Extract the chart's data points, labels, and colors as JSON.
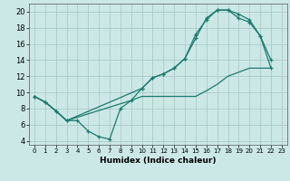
{
  "xlabel": "Humidex (Indice chaleur)",
  "bg_color": "#cce8e6",
  "grid_color": "#aaccca",
  "line_color": "#1a7a6e",
  "xlim": [
    -0.5,
    23.5
  ],
  "ylim": [
    3.5,
    21
  ],
  "xticks": [
    0,
    1,
    2,
    3,
    4,
    5,
    6,
    7,
    8,
    9,
    10,
    11,
    12,
    13,
    14,
    15,
    16,
    17,
    18,
    19,
    20,
    21,
    22,
    23
  ],
  "yticks": [
    4,
    6,
    8,
    10,
    12,
    14,
    16,
    18,
    20
  ],
  "line1_x": [
    0,
    1,
    2,
    3,
    4,
    5,
    6,
    7,
    8,
    9,
    10,
    11,
    12,
    13,
    14,
    15,
    16,
    17,
    18,
    19,
    20,
    21,
    22
  ],
  "line1_y": [
    9.5,
    8.8,
    7.7,
    6.5,
    6.5,
    5.2,
    4.5,
    4.2,
    8.0,
    9.0,
    10.5,
    11.8,
    12.3,
    13.0,
    14.2,
    17.2,
    19.0,
    20.2,
    20.2,
    19.2,
    18.7,
    17.0,
    14.0
  ],
  "line2_x": [
    0,
    1,
    2,
    3,
    10,
    11,
    12,
    13,
    14,
    15,
    16,
    17,
    18,
    19,
    20,
    21,
    22
  ],
  "line2_y": [
    9.5,
    8.8,
    7.7,
    6.5,
    10.5,
    11.8,
    12.3,
    13.0,
    14.2,
    16.7,
    19.2,
    20.2,
    20.2,
    19.7,
    19.0,
    17.0,
    13.0
  ],
  "line3_x": [
    0,
    1,
    2,
    3,
    9,
    10,
    15,
    16,
    17,
    18,
    19,
    20,
    21,
    22
  ],
  "line3_y": [
    9.5,
    8.8,
    7.7,
    6.5,
    9.0,
    9.5,
    9.5,
    10.2,
    11.0,
    12.0,
    12.5,
    13.0,
    13.0,
    13.0
  ]
}
